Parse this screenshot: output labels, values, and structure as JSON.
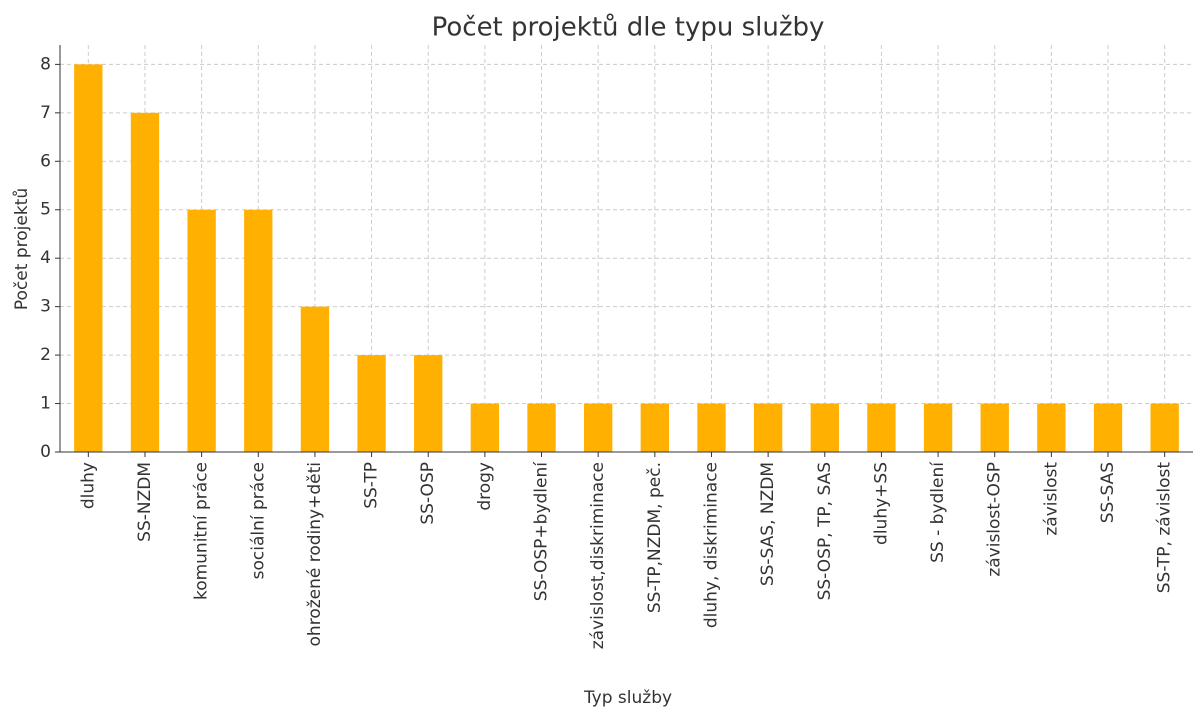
{
  "chart_data": {
    "type": "bar",
    "title": "Počet projektů dle typu služby",
    "x_label": "Typ služby",
    "y_label": "Počet projektů",
    "categories": [
      "dluhy",
      "SS-NZDM",
      "komunitní práce",
      "sociální práce",
      "ohrožené rodiny+děti",
      "SS-TP",
      "SS-OSP",
      "drogy",
      "SS-OSP+bydlení",
      "závislost,diskriminace",
      "SS-TP,NZDM, peč.",
      "dluhy, diskriminace",
      "SS-SAS, NZDM",
      "SS-OSP, TP, SAS",
      "dluhy+SS",
      "SS - bydlení",
      "závislost-OSP",
      "závislost",
      "SS-SAS",
      "SS-TP, závislost"
    ],
    "values": [
      8,
      7,
      5,
      5,
      3,
      2,
      2,
      1,
      1,
      1,
      1,
      1,
      1,
      1,
      1,
      1,
      1,
      1,
      1,
      1
    ],
    "color": "#ffb000",
    "ylim": [
      0,
      8.4
    ],
    "yticks": [
      0,
      1,
      2,
      3,
      4,
      5,
      6,
      7,
      8
    ],
    "grid": true
  }
}
